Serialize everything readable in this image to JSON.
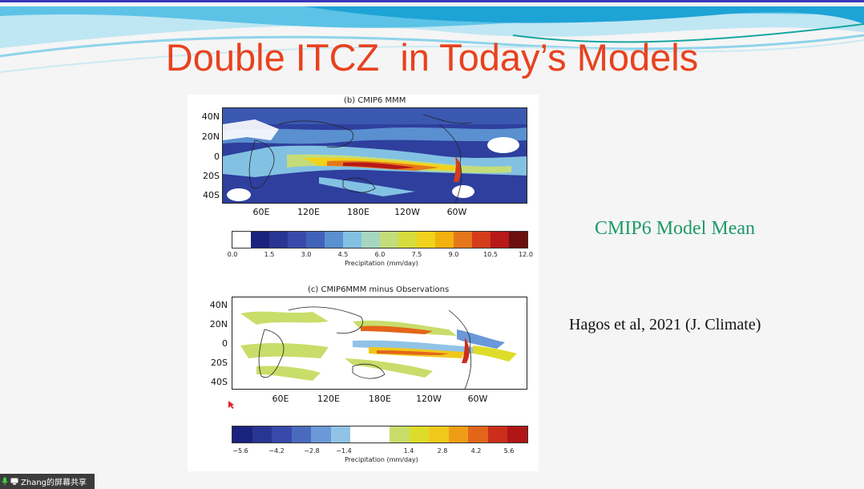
{
  "slide": {
    "title": "Double ITCZ  in Today’s Models",
    "annotation_model": "CMIP6 Model Mean",
    "annotation_ref": "Hagos et al, 2021 (J. Climate)"
  },
  "panel_b": {
    "title": "(b) CMIP6 MMM",
    "lat_labels": [
      "40N",
      "20N",
      "0",
      "20S",
      "40S"
    ],
    "lon_labels": [
      "60E",
      "120E",
      "180E",
      "120W",
      "60W"
    ],
    "colorbar_ticks": [
      "0.0",
      "1.5",
      "3.0",
      "4.5",
      "6.0",
      "7.5",
      "9.0",
      "10.5",
      "12.0"
    ],
    "colorbar_label": "Precipitation (mm/day)",
    "colorbar_colors": [
      "#ffffff",
      "#1a237e",
      "#283593",
      "#3949ab",
      "#4062b8",
      "#5a8fd0",
      "#83c1e3",
      "#a6d6c0",
      "#c4dd7a",
      "#d7dc3c",
      "#f0d21c",
      "#f2b10e",
      "#e5771a",
      "#d43c1c",
      "#b71818",
      "#6d0e0e"
    ]
  },
  "panel_c": {
    "title": "(c) CMIP6MMM minus Observations",
    "lat_labels": [
      "40N",
      "20N",
      "0",
      "20S",
      "40S"
    ],
    "lon_labels": [
      "60E",
      "120E",
      "180E",
      "120W",
      "60W"
    ],
    "colorbar_ticks": [
      "−5.6",
      "−4.2",
      "−2.8",
      "−1.4",
      "1.4",
      "2.8",
      "4.2",
      "5.6"
    ],
    "colorbar_label": "Precipitation (mm/day)",
    "colorbar_colors": [
      "#1a237e",
      "#283593",
      "#3949ab",
      "#4a6bbd",
      "#6a98d8",
      "#90c3e6",
      "#ffffff",
      "#ffffff",
      "#c9dd6a",
      "#dedc2a",
      "#f0c81c",
      "#ef9d16",
      "#e3651a",
      "#cc2e1c",
      "#b01616"
    ]
  },
  "screen_share": {
    "label": "Zhang的屏幕共享"
  }
}
